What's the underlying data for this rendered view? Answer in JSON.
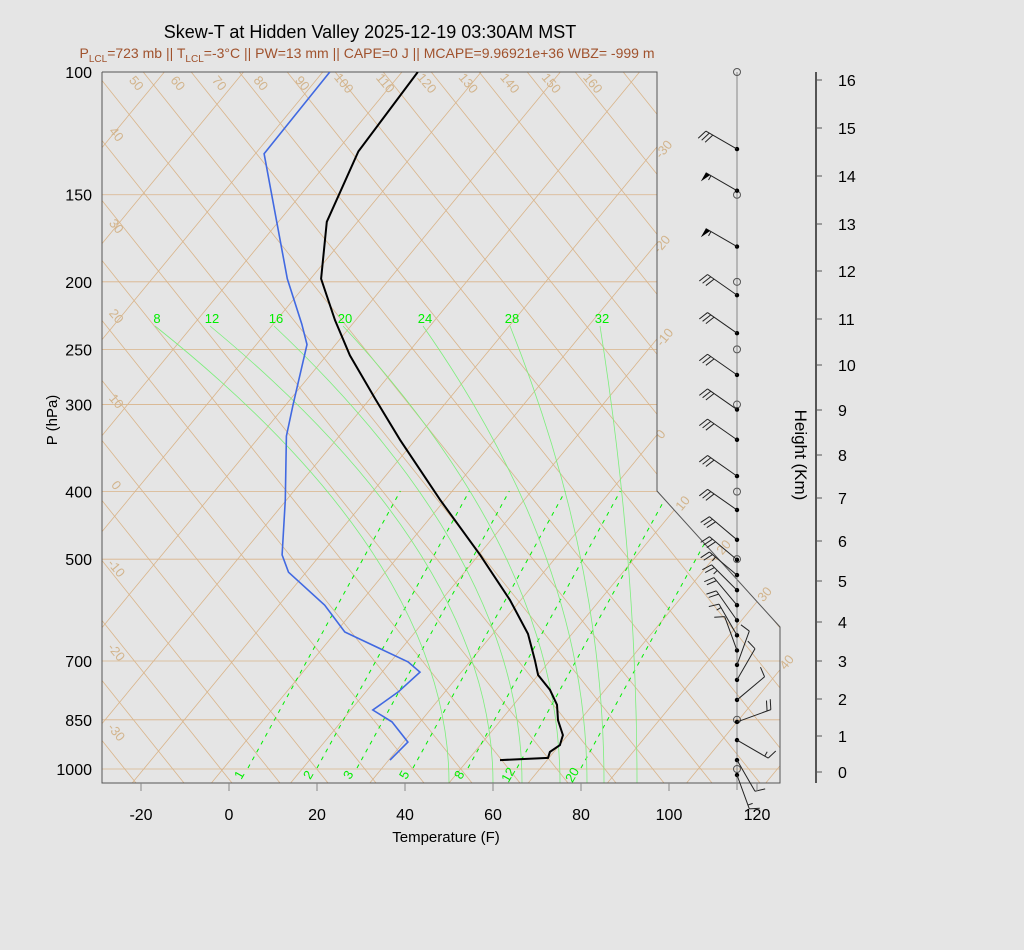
{
  "chart_data": {
    "type": "line",
    "title": "Skew-T at Hidden Valley 2025-12-19 03:30AM MST",
    "subtitle": {
      "plcl": "P",
      "plcl_sub": "LCL",
      "plcl_val": "=723 mb || T",
      "tlcl_sub": "LCL",
      "rest": "=-3°C || PW=13 mm || CAPE=0 J || MCAPE=9.96921e+36 WBZ= -999 m"
    },
    "xlabel": "Temperature (F)",
    "ylabel": "P (hPa)",
    "y2label": "Height (Km)",
    "xlim": [
      -30,
      125
    ],
    "ylim": [
      1050,
      100
    ],
    "y_scale": "log",
    "x_ticks": [
      "-20",
      "0",
      "20",
      "40",
      "60",
      "80",
      "100",
      "120"
    ],
    "y_ticks": [
      "100",
      "150",
      "200",
      "250",
      "300",
      "400",
      "500",
      "700",
      "850",
      "1000"
    ],
    "height_ticks": [
      "0",
      "1",
      "2",
      "3",
      "4",
      "5",
      "6",
      "7",
      "8",
      "9",
      "10",
      "11",
      "12",
      "13",
      "14",
      "15",
      "16"
    ],
    "isotherm_labels_c": [
      "-30",
      "-20",
      "-10",
      "0",
      "10",
      "20",
      "30",
      "40"
    ],
    "dry_adiabat_top_labels": [
      "50",
      "60",
      "70",
      "80",
      "90",
      "100",
      "110",
      "120",
      "130",
      "140",
      "150",
      "160"
    ],
    "dry_adiabat_left_labels": [
      "40",
      "30",
      "20",
      "10",
      "0",
      "-10",
      "-20",
      "-30"
    ],
    "moist_adiabat_labels": [
      "8",
      "12",
      "16",
      "20",
      "24",
      "28",
      "32"
    ],
    "mixing_ratio_labels": [
      "1",
      "2",
      "3",
      "5",
      "8",
      "12",
      "20"
    ],
    "colors": {
      "temperature": "#000000",
      "dewpoint": "#4169e1",
      "grid": "#d9b48a",
      "moist": "#00ee00",
      "subtitle": "#a0522d"
    },
    "series": [
      {
        "key": "temperature",
        "points": [
          [
            971,
            57.3
          ],
          [
            964,
            67.8
          ],
          [
            945,
            67.1
          ],
          [
            924,
            68.1
          ],
          [
            894,
            66.9
          ],
          [
            851,
            63.0
          ],
          [
            809,
            59.9
          ],
          [
            770,
            55.5
          ],
          [
            733,
            50.0
          ],
          [
            698,
            46.5
          ],
          [
            640,
            40.0
          ],
          [
            572,
            29.5
          ],
          [
            493,
            14.3
          ],
          [
            411,
            -5.1
          ],
          [
            337,
            -25.5
          ],
          [
            295,
            -38.6
          ],
          [
            255,
            -52.7
          ],
          [
            227,
            -62.7
          ],
          [
            198,
            -73.6
          ],
          [
            164,
            -83.0
          ],
          [
            130,
            -89.0
          ],
          [
            100,
            -90.4
          ]
        ]
      },
      {
        "key": "dewpoint",
        "points": [
          [
            971,
            32.3
          ],
          [
            915,
            33.0
          ],
          [
            856,
            25.6
          ],
          [
            823,
            19.0
          ],
          [
            775,
            21.4
          ],
          [
            726,
            22.6
          ],
          [
            702,
            18.0
          ],
          [
            636,
            -2.0
          ],
          [
            582,
            -11.6
          ],
          [
            522,
            -26.0
          ],
          [
            493,
            -30.7
          ],
          [
            411,
            -40.3
          ],
          [
            333,
            -52.0
          ],
          [
            300,
            -56.4
          ],
          [
            246,
            -64.5
          ],
          [
            230,
            -69.5
          ],
          [
            198,
            -81.3
          ],
          [
            131,
            -110.0
          ],
          [
            100,
            -110.4
          ]
        ]
      }
    ],
    "wind_barbs": [
      [
        129,
        300,
        30
      ],
      [
        148,
        300,
        55
      ],
      [
        178,
        300,
        55
      ],
      [
        209,
        305,
        30
      ],
      [
        237,
        305,
        30
      ],
      [
        272,
        305,
        30
      ],
      [
        305,
        305,
        30
      ],
      [
        337,
        305,
        30
      ],
      [
        380,
        305,
        30
      ],
      [
        425,
        305,
        30
      ],
      [
        469,
        310,
        30
      ],
      [
        501,
        310,
        30
      ],
      [
        527,
        310,
        25
      ],
      [
        554,
        315,
        25
      ],
      [
        582,
        320,
        20
      ],
      [
        612,
        325,
        20
      ],
      [
        643,
        330,
        15
      ],
      [
        676,
        340,
        10
      ],
      [
        709,
        20,
        10
      ],
      [
        745,
        30,
        10
      ],
      [
        796,
        50,
        10
      ],
      [
        856,
        70,
        20
      ],
      [
        909,
        120,
        15
      ],
      [
        971,
        150,
        10
      ],
      [
        1020,
        160,
        15
      ]
    ]
  }
}
